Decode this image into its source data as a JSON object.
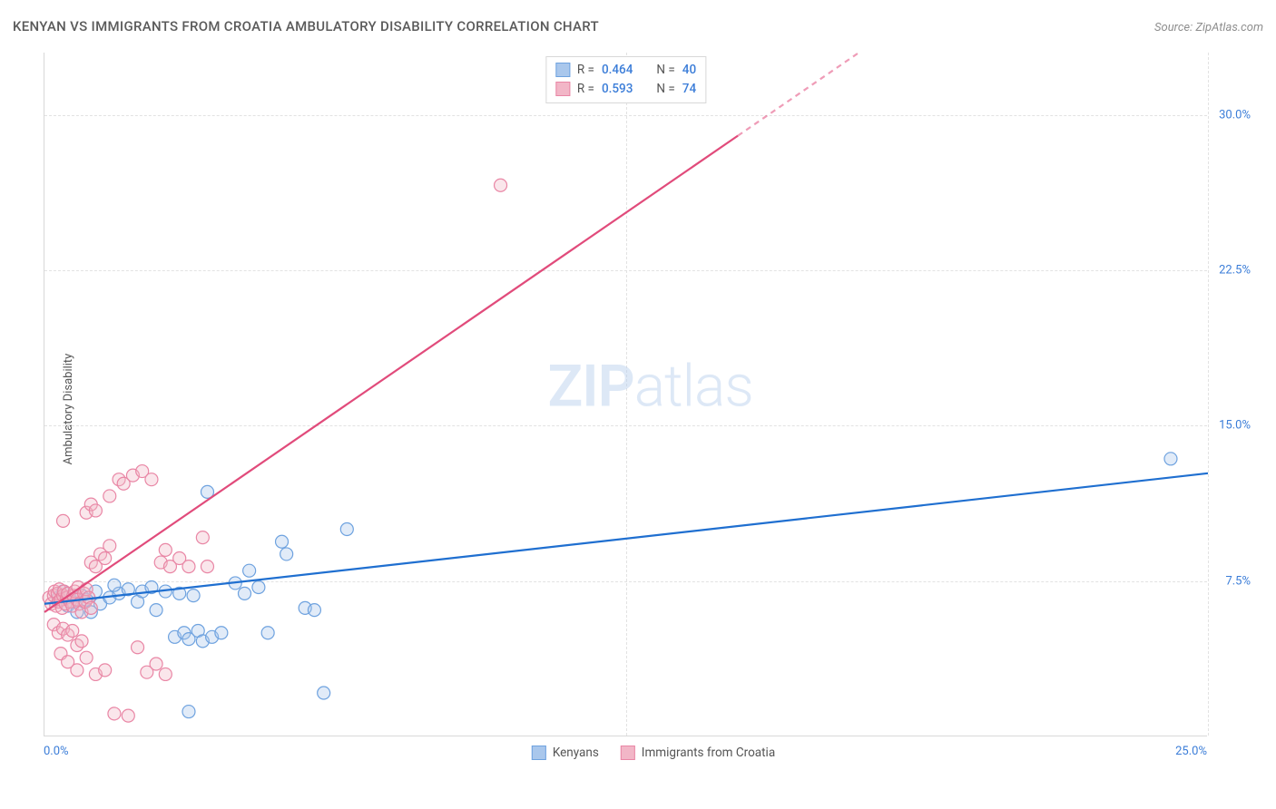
{
  "title": "KENYAN VS IMMIGRANTS FROM CROATIA AMBULATORY DISABILITY CORRELATION CHART",
  "source_prefix": "Source: ",
  "source_name": "ZipAtlas.com",
  "watermark_zip": "ZIP",
  "watermark_atlas": "atlas",
  "ylabel": "Ambulatory Disability",
  "chart": {
    "type": "scatter",
    "background_color": "#ffffff",
    "grid_color": "#e2e2e2",
    "axis_color": "#d8d8d8",
    "label_color": "#555555",
    "tick_color": "#3b7dd8",
    "xlim": [
      0,
      25
    ],
    "ylim": [
      0,
      33
    ],
    "xticks": [
      0.0,
      25.0
    ],
    "xtick_labels": [
      "0.0%",
      "25.0%"
    ],
    "yticks": [
      7.5,
      15.0,
      22.5,
      30.0
    ],
    "ytick_labels": [
      "7.5%",
      "15.0%",
      "22.5%",
      "30.0%"
    ],
    "vgrid_at": [
      12.5,
      25.0
    ],
    "marker_radius": 7,
    "marker_stroke_width": 1.2,
    "marker_fill_opacity": 0.35,
    "line_width": 2.2,
    "series": [
      {
        "id": "kenyans",
        "label": "Kenyans",
        "color_fill": "#a9c7ec",
        "color_stroke": "#6ea2df",
        "line_color": "#1f6fd0",
        "R": "0.464",
        "N": "40",
        "trend": {
          "x1": 0,
          "y1": 6.4,
          "x2": 25,
          "y2": 12.7,
          "dashed_from_x": null
        },
        "points": [
          [
            0.3,
            6.7
          ],
          [
            0.4,
            7.0
          ],
          [
            0.6,
            6.5
          ],
          [
            0.8,
            6.8
          ],
          [
            0.9,
            6.6
          ],
          [
            1.1,
            7.0
          ],
          [
            0.5,
            6.3
          ],
          [
            0.7,
            6.0
          ],
          [
            1.0,
            6.0
          ],
          [
            1.2,
            6.4
          ],
          [
            1.4,
            6.7
          ],
          [
            1.6,
            6.9
          ],
          [
            1.5,
            7.3
          ],
          [
            1.8,
            7.1
          ],
          [
            2.0,
            6.5
          ],
          [
            2.1,
            7.0
          ],
          [
            2.3,
            7.2
          ],
          [
            2.4,
            6.1
          ],
          [
            2.6,
            7.0
          ],
          [
            2.8,
            4.8
          ],
          [
            3.0,
            5.0
          ],
          [
            3.1,
            4.7
          ],
          [
            3.3,
            5.1
          ],
          [
            3.4,
            4.6
          ],
          [
            3.6,
            4.8
          ],
          [
            3.8,
            5.0
          ],
          [
            2.9,
            6.9
          ],
          [
            3.2,
            6.8
          ],
          [
            3.5,
            11.8
          ],
          [
            4.1,
            7.4
          ],
          [
            4.3,
            6.9
          ],
          [
            4.4,
            8.0
          ],
          [
            4.6,
            7.2
          ],
          [
            4.8,
            5.0
          ],
          [
            5.1,
            9.4
          ],
          [
            5.2,
            8.8
          ],
          [
            5.6,
            6.2
          ],
          [
            5.8,
            6.1
          ],
          [
            6.0,
            2.1
          ],
          [
            6.5,
            10.0
          ],
          [
            3.1,
            1.2
          ],
          [
            24.2,
            13.4
          ]
        ]
      },
      {
        "id": "croatia",
        "label": "Immigrants from Croatia",
        "color_fill": "#f2b6c7",
        "color_stroke": "#e986a5",
        "line_color": "#e14b7b",
        "R": "0.593",
        "N": "74",
        "trend": {
          "x1": 0,
          "y1": 6.0,
          "x2": 17.5,
          "y2": 33.0,
          "dashed_from_x": 14.9
        },
        "points": [
          [
            0.1,
            6.7
          ],
          [
            0.15,
            6.4
          ],
          [
            0.2,
            6.8
          ],
          [
            0.22,
            7.0
          ],
          [
            0.25,
            6.3
          ],
          [
            0.28,
            6.9
          ],
          [
            0.3,
            6.5
          ],
          [
            0.32,
            7.1
          ],
          [
            0.35,
            6.6
          ],
          [
            0.38,
            6.2
          ],
          [
            0.4,
            6.8
          ],
          [
            0.42,
            7.0
          ],
          [
            0.45,
            6.4
          ],
          [
            0.48,
            6.7
          ],
          [
            0.5,
            6.9
          ],
          [
            0.55,
            6.5
          ],
          [
            0.6,
            6.3
          ],
          [
            0.62,
            6.8
          ],
          [
            0.65,
            7.0
          ],
          [
            0.7,
            6.6
          ],
          [
            0.72,
            7.2
          ],
          [
            0.75,
            6.4
          ],
          [
            0.8,
            6.0
          ],
          [
            0.85,
            6.9
          ],
          [
            0.88,
            6.5
          ],
          [
            0.9,
            7.1
          ],
          [
            0.95,
            6.7
          ],
          [
            1.0,
            6.2
          ],
          [
            0.2,
            5.4
          ],
          [
            0.3,
            5.0
          ],
          [
            0.4,
            5.2
          ],
          [
            0.5,
            4.9
          ],
          [
            0.6,
            5.1
          ],
          [
            0.7,
            4.4
          ],
          [
            0.8,
            4.6
          ],
          [
            0.35,
            4.0
          ],
          [
            0.5,
            3.6
          ],
          [
            0.7,
            3.2
          ],
          [
            0.9,
            3.8
          ],
          [
            1.1,
            3.0
          ],
          [
            1.3,
            3.2
          ],
          [
            1.5,
            1.1
          ],
          [
            1.8,
            1.0
          ],
          [
            1.0,
            8.4
          ],
          [
            1.1,
            8.2
          ],
          [
            1.2,
            8.8
          ],
          [
            1.3,
            8.6
          ],
          [
            1.4,
            9.2
          ],
          [
            0.4,
            10.4
          ],
          [
            0.9,
            10.8
          ],
          [
            1.0,
            11.2
          ],
          [
            1.1,
            10.9
          ],
          [
            1.4,
            11.6
          ],
          [
            1.6,
            12.4
          ],
          [
            1.7,
            12.2
          ],
          [
            1.9,
            12.6
          ],
          [
            2.1,
            12.8
          ],
          [
            2.3,
            12.4
          ],
          [
            2.5,
            8.4
          ],
          [
            2.6,
            9.0
          ],
          [
            2.7,
            8.2
          ],
          [
            2.9,
            8.6
          ],
          [
            3.1,
            8.2
          ],
          [
            3.4,
            9.6
          ],
          [
            2.0,
            4.3
          ],
          [
            2.2,
            3.1
          ],
          [
            2.4,
            3.5
          ],
          [
            2.6,
            3.0
          ],
          [
            3.5,
            8.2
          ],
          [
            9.8,
            26.6
          ]
        ]
      }
    ]
  },
  "stats_legend": {
    "r_prefix": "R = ",
    "n_prefix": "N = "
  },
  "bottom_legend_labels": [
    "Kenyans",
    "Immigrants from Croatia"
  ]
}
